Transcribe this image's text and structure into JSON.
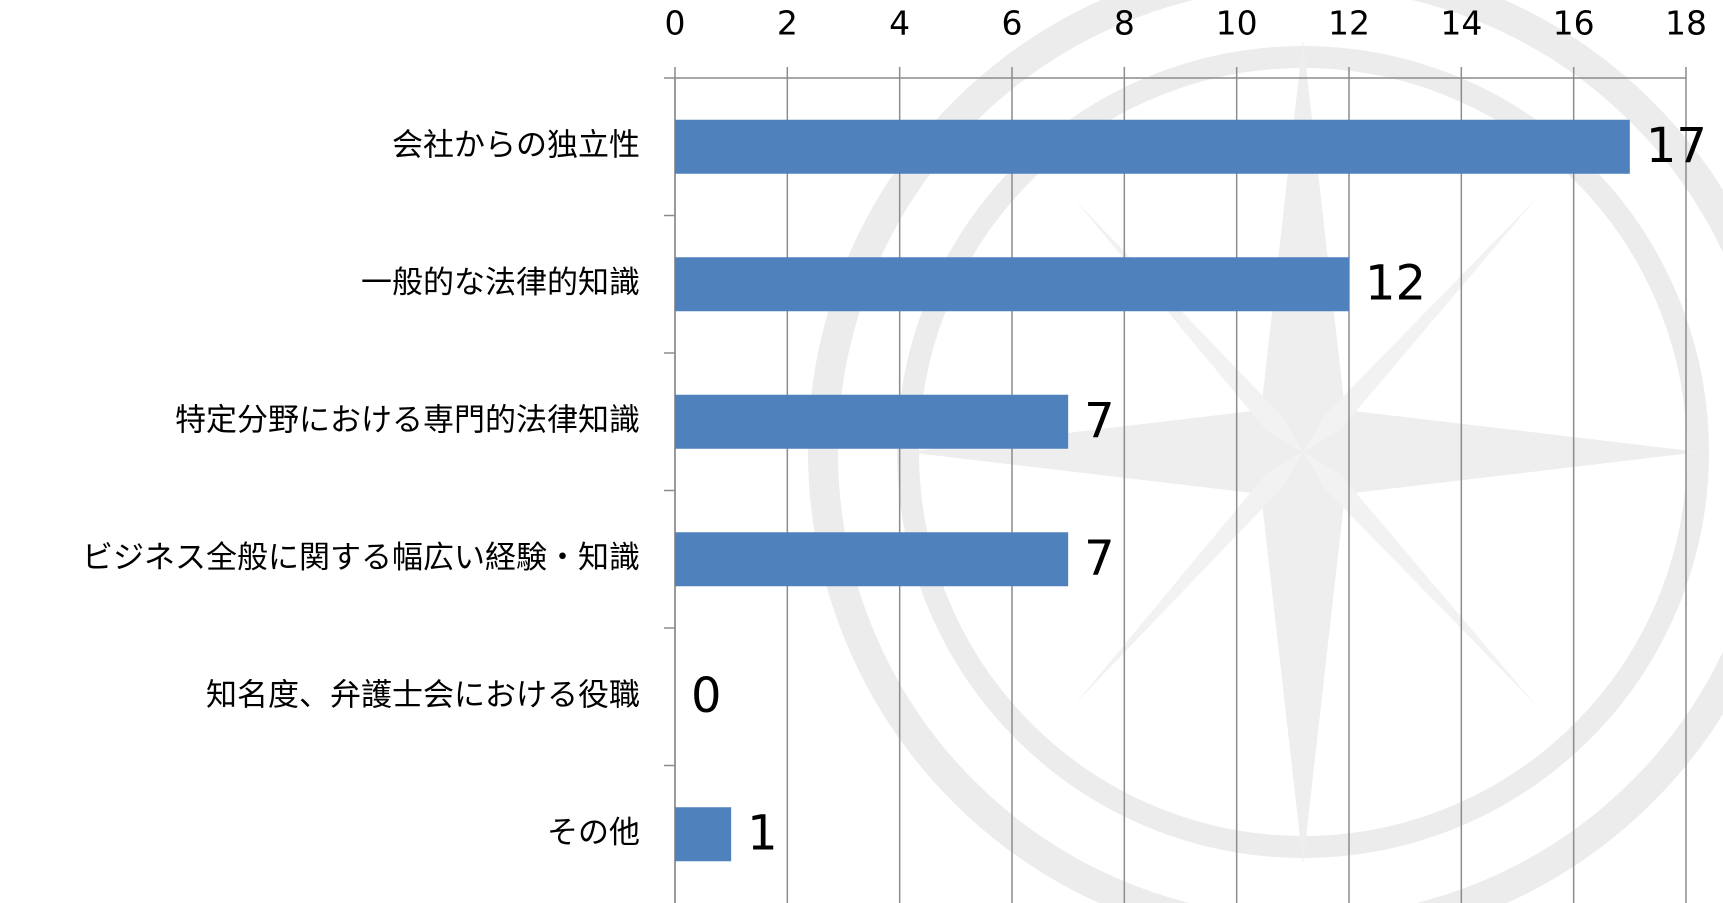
{
  "chart_data": {
    "type": "bar",
    "orientation": "horizontal",
    "categories": [
      "会社からの独立性",
      "一般的な法律的知識",
      "特定分野における専門的法律知識",
      "ビジネス全般に関する幅広い経験・知識",
      "知名度、弁護士会における役職",
      "その他"
    ],
    "values": [
      17,
      12,
      7,
      7,
      0,
      1
    ],
    "color": "#4f81bd",
    "xlim": [
      0,
      18
    ],
    "xticks": [
      0,
      2,
      4,
      6,
      8,
      10,
      12,
      14,
      16,
      18
    ],
    "grid": true
  }
}
